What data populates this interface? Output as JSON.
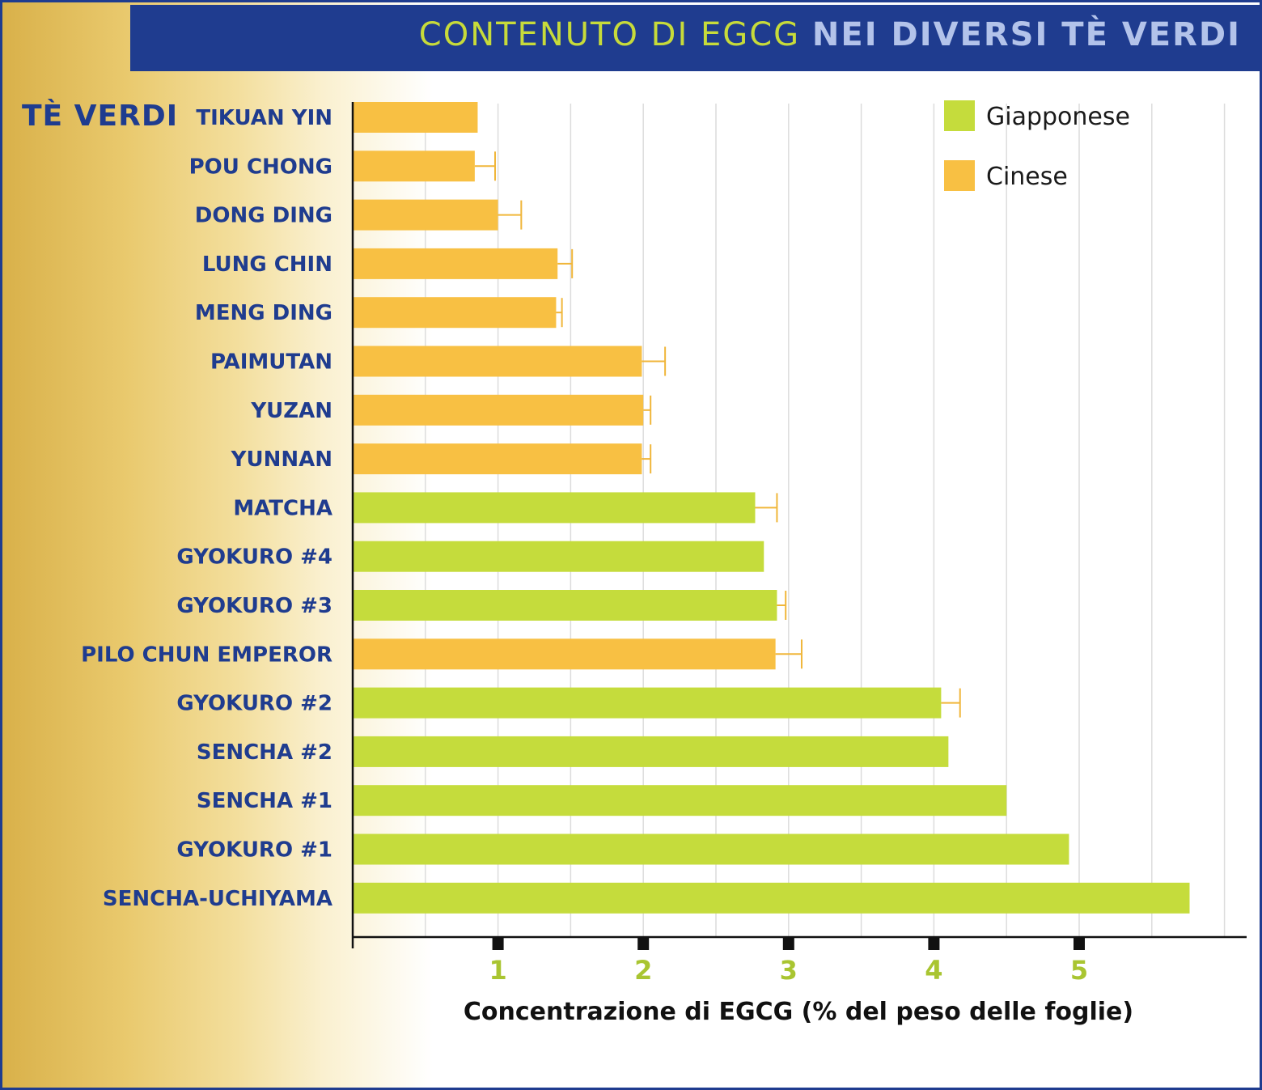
{
  "header": {
    "title_light": "CONTENUTO DI EGCG",
    "title_bold": "NEI DIVERSI TÈ VERDI",
    "category_heading": "TÈ VERDI"
  },
  "colors": {
    "header_band": "#1f3c8f",
    "japanese": "#c5dc3c",
    "chinese": "#f8c043",
    "label_text": "#1f3c8f",
    "tick_text": "#a9c531"
  },
  "chart_data": {
    "type": "bar",
    "orientation": "horizontal",
    "xlabel": "Concentrazione di EGCG (% del peso delle foglie)",
    "xlim": [
      0,
      6
    ],
    "xticks": [
      "1",
      "2",
      "3",
      "4",
      "5"
    ],
    "grid": true,
    "legend_position": "top-right",
    "legend": [
      {
        "name": "Giapponese",
        "color": "#c5dc3c"
      },
      {
        "name": "Cinese",
        "color": "#f8c043"
      }
    ],
    "categories": [
      "TIKUAN YIN",
      "POU CHONG",
      "DONG DING",
      "LUNG CHIN",
      "MENG DING",
      "PAIMUTAN",
      "YUZAN",
      "YUNNAN",
      "MATCHA",
      "GYOKURO #4",
      "GYOKURO #3",
      "PILO CHUN EMPEROR",
      "GYOKURO #2",
      "SENCHA #2",
      "SENCHA #1",
      "GYOKURO #1",
      "SENCHA-UCHIYAMA"
    ],
    "origin": [
      "Cinese",
      "Cinese",
      "Cinese",
      "Cinese",
      "Cinese",
      "Cinese",
      "Cinese",
      "Cinese",
      "Giapponese",
      "Giapponese",
      "Giapponese",
      "Cinese",
      "Giapponese",
      "Giapponese",
      "Giapponese",
      "Giapponese",
      "Giapponese"
    ],
    "values": [
      0.86,
      0.84,
      1.0,
      1.41,
      1.4,
      1.99,
      2.0,
      1.99,
      2.77,
      2.83,
      2.92,
      2.91,
      4.05,
      4.1,
      4.5,
      4.93,
      5.76
    ],
    "errors": [
      0,
      0.14,
      0.16,
      0.1,
      0.04,
      0.16,
      0.05,
      0.06,
      0.15,
      0,
      0.06,
      0.18,
      0.13,
      0,
      0,
      0,
      0
    ]
  }
}
